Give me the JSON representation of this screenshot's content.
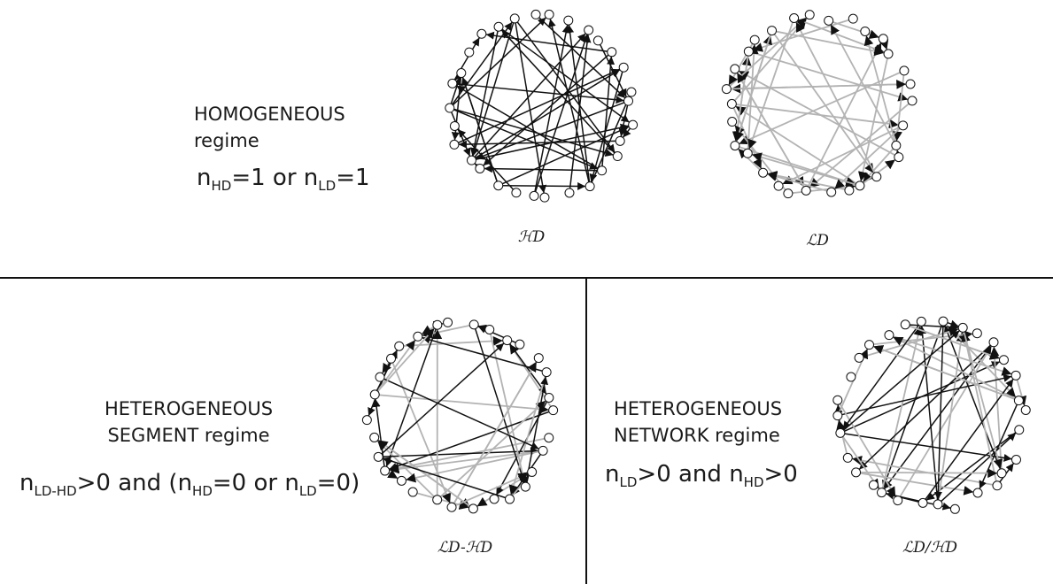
{
  "top": {
    "title_line1": "HOMOGENEOUS",
    "title_line2": "regime",
    "condition": {
      "n1": "n",
      "sub1": "HD",
      "mid": "=1 or ",
      "n2": "n",
      "sub2": "LD",
      "end": "=1"
    },
    "graph_labels": [
      "ℋD",
      "ℒD"
    ]
  },
  "bottom_left": {
    "title_line1": "HETEROGENEOUS",
    "title_line2": "SEGMENT regime",
    "condition": {
      "n1": "n",
      "sub1": "LD-HD",
      "mid1": ">0  and (",
      "n2": "n",
      "sub2": "HD",
      "mid2": "=0 or ",
      "n3": "n",
      "sub3": "LD",
      "end": "=0)"
    },
    "graph_label": "ℒD-ℋD"
  },
  "bottom_right": {
    "title_line1": "HETEROGENEOUS",
    "title_line2": "NETWORK regime",
    "condition": {
      "n1": "n",
      "sub1": "LD",
      "mid": ">0  and ",
      "n2": "n",
      "sub2": "HD",
      "end": ">0"
    },
    "graph_label": "ℒD/ℋD"
  },
  "colors": {
    "black_edge": "#111111",
    "gray_edge": "#b3b3b3",
    "node_fill": "#ffffff",
    "node_stroke": "#111111"
  },
  "networks": [
    {
      "id": "HD",
      "nodes": 30,
      "edges": "black"
    },
    {
      "id": "LD",
      "nodes": 30,
      "edges": "gray"
    },
    {
      "id": "LD-HD",
      "nodes": 30,
      "edges": "mixed"
    },
    {
      "id": "LD/HD",
      "nodes": 30,
      "edges": "mixed"
    }
  ]
}
